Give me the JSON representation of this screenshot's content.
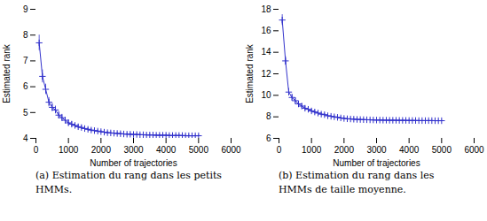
{
  "chart_data": [
    {
      "type": "line",
      "x": [
        100,
        200,
        300,
        400,
        500,
        600,
        700,
        800,
        900,
        1000,
        1100,
        1200,
        1300,
        1400,
        1500,
        1600,
        1700,
        1800,
        1900,
        2000,
        2100,
        2200,
        2300,
        2400,
        2500,
        2600,
        2700,
        2800,
        2900,
        3000,
        3100,
        3200,
        3300,
        3400,
        3500,
        3600,
        3700,
        3800,
        3900,
        4000,
        4100,
        4200,
        4300,
        4400,
        4500,
        4600,
        4700,
        4800,
        4900,
        5000
      ],
      "values": [
        7.7,
        6.4,
        5.9,
        5.4,
        5.2,
        5.1,
        4.9,
        4.8,
        4.7,
        4.6,
        4.55,
        4.5,
        4.45,
        4.42,
        4.38,
        4.35,
        4.32,
        4.3,
        4.28,
        4.26,
        4.24,
        4.22,
        4.21,
        4.2,
        4.19,
        4.18,
        4.17,
        4.16,
        4.16,
        4.15,
        4.15,
        4.14,
        4.14,
        4.13,
        4.13,
        4.13,
        4.12,
        4.12,
        4.12,
        4.12,
        4.11,
        4.11,
        4.11,
        4.11,
        4.11,
        4.1,
        4.1,
        4.1,
        4.1,
        4.1
      ],
      "yerr": [
        0.3,
        0.25,
        0.2,
        0.18,
        0.16,
        0.15,
        0.14,
        0.13,
        0.12,
        0.11,
        0.1,
        0.09,
        0.08,
        0.07,
        0.07,
        0.06,
        0.06,
        0.06,
        0.05,
        0.05,
        0.05,
        0.05,
        0.04,
        0.04,
        0.04,
        0.04,
        0.04,
        0.04,
        0.04,
        0.03,
        0.03,
        0.03,
        0.03,
        0.03,
        0.03,
        0.03,
        0.03,
        0.03,
        0.03,
        0.03,
        0.03,
        0.03,
        0.03,
        0.03,
        0.03,
        0.03,
        0.03,
        0.03,
        0.03,
        0.03
      ],
      "color": "#3333cc",
      "marker": "plus",
      "xlabel": "Number of trajectories",
      "ylabel": "Estimated rank",
      "xlim": [
        0,
        6000
      ],
      "xticks": [
        0,
        1000,
        2000,
        3000,
        4000,
        5000,
        6000
      ],
      "ylim": [
        4,
        9
      ],
      "yticks": [
        4,
        5,
        6,
        7,
        8,
        9
      ],
      "caption": [
        "(a) Estimation du rang dans les petits",
        "HMMs."
      ]
    },
    {
      "type": "line",
      "x": [
        100,
        200,
        300,
        400,
        500,
        600,
        700,
        800,
        900,
        1000,
        1100,
        1200,
        1300,
        1400,
        1500,
        1600,
        1700,
        1800,
        1900,
        2000,
        2100,
        2200,
        2300,
        2400,
        2500,
        2600,
        2700,
        2800,
        2900,
        3000,
        3100,
        3200,
        3300,
        3400,
        3500,
        3600,
        3700,
        3800,
        3900,
        4000,
        4100,
        4200,
        4300,
        4400,
        4500,
        4600,
        4700,
        4800,
        4900,
        5000
      ],
      "values": [
        17.0,
        13.2,
        10.3,
        9.8,
        9.5,
        9.2,
        9.0,
        8.8,
        8.7,
        8.55,
        8.45,
        8.35,
        8.25,
        8.2,
        8.1,
        8.05,
        8.0,
        7.95,
        7.9,
        7.85,
        7.82,
        7.8,
        7.78,
        7.76,
        7.75,
        7.74,
        7.73,
        7.72,
        7.71,
        7.7,
        7.7,
        7.69,
        7.69,
        7.68,
        7.68,
        7.68,
        7.67,
        7.67,
        7.67,
        7.66,
        7.66,
        7.66,
        7.65,
        7.65,
        7.65,
        7.65,
        7.65,
        7.64,
        7.64,
        7.64
      ],
      "yerr": [
        0.5,
        0.4,
        0.35,
        0.3,
        0.28,
        0.25,
        0.22,
        0.2,
        0.18,
        0.16,
        0.15,
        0.14,
        0.13,
        0.12,
        0.11,
        0.1,
        0.09,
        0.09,
        0.08,
        0.08,
        0.07,
        0.07,
        0.07,
        0.06,
        0.06,
        0.06,
        0.06,
        0.05,
        0.05,
        0.05,
        0.05,
        0.05,
        0.05,
        0.05,
        0.04,
        0.04,
        0.04,
        0.04,
        0.04,
        0.04,
        0.04,
        0.04,
        0.04,
        0.04,
        0.04,
        0.04,
        0.04,
        0.04,
        0.04,
        0.04
      ],
      "color": "#3333cc",
      "marker": "plus",
      "xlabel": "Number of trajectories",
      "ylabel": "Estimated rank",
      "xlim": [
        0,
        6000
      ],
      "xticks": [
        0,
        1000,
        2000,
        3000,
        4000,
        5000,
        6000
      ],
      "ylim": [
        6,
        18
      ],
      "yticks": [
        6,
        8,
        10,
        12,
        14,
        16,
        18
      ],
      "caption": [
        "(b)  Estimation du rang dans les",
        "HMMs de taille moyenne."
      ]
    }
  ]
}
